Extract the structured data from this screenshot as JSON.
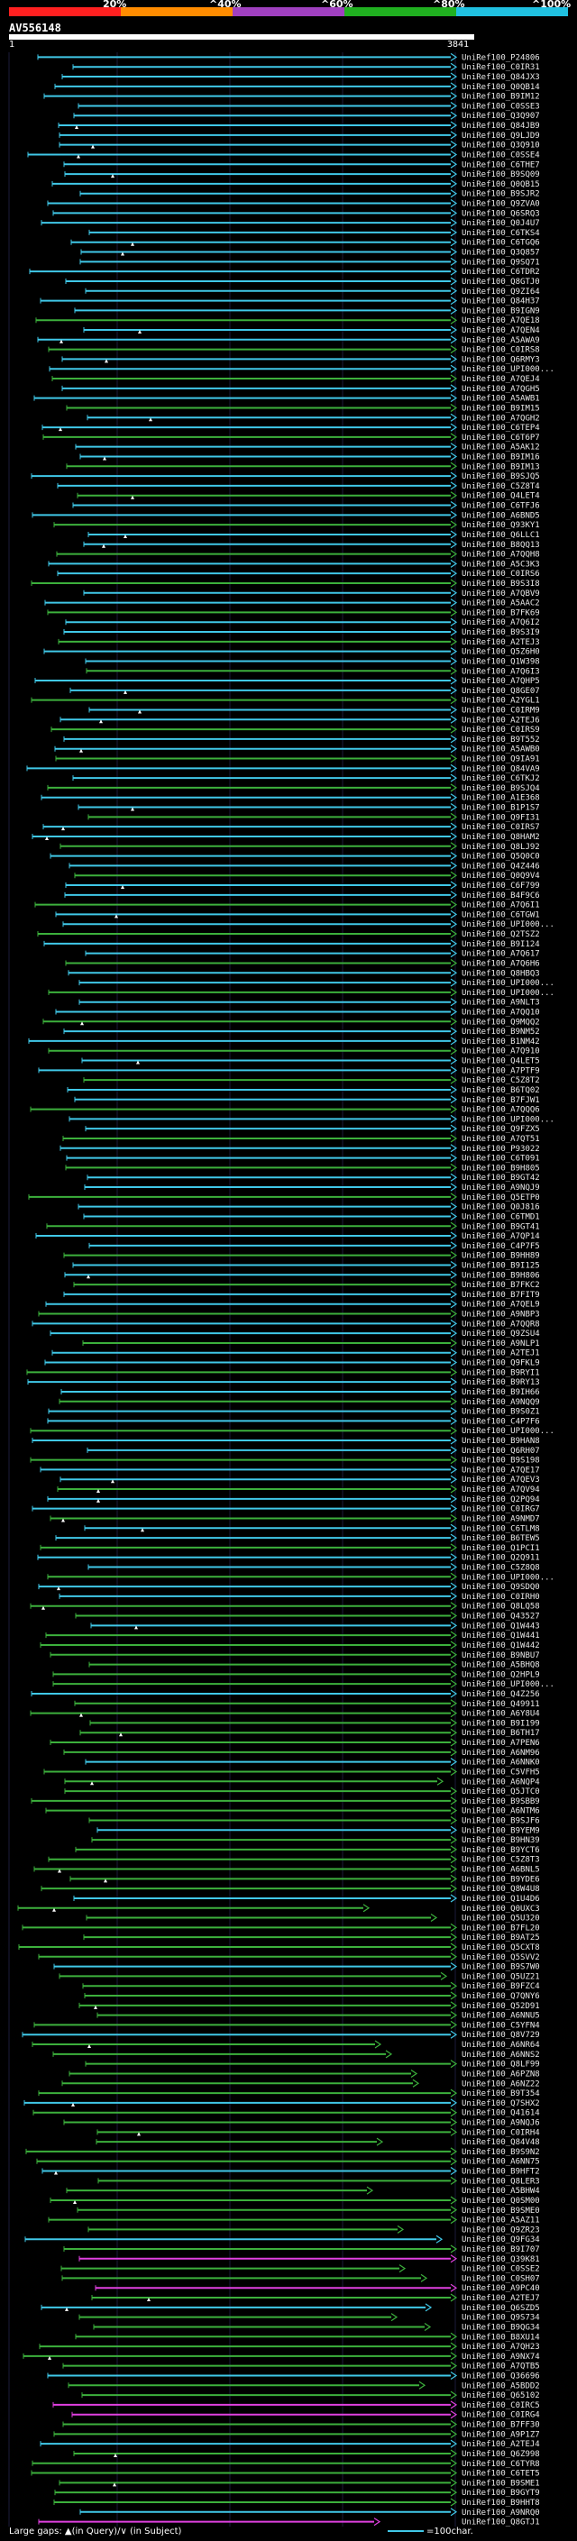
{
  "scale": {
    "labels": [
      "20%",
      "^40%",
      "^60%",
      "^80%",
      "^100%"
    ],
    "colors": [
      "#ff2020",
      "#ff8c00",
      "#a040c0",
      "#20b020",
      "#20c0e0"
    ]
  },
  "query": {
    "title": "AV556148",
    "start": "1",
    "end": "3841"
  },
  "colors": {
    "cyan": "#40c8e8",
    "green": "#3cb03c",
    "magenta": "#e040e0",
    "white": "#ffffff"
  },
  "hits": [
    "UniRef100_P24806",
    "UniRef100_C0IR31",
    "UniRef100_Q84JX3",
    "UniRef100_Q0QB14",
    "UniRef100_B9IM12",
    "UniRef100_C0SSE3",
    "UniRef100_Q3Q907",
    "UniRef100_Q84JB9",
    "UniRef100_Q9LJD9",
    "UniRef100_Q3Q910",
    "UniRef100_C0SSE4",
    "UniRef100_C6THE7",
    "UniRef100_B9SQ09",
    "UniRef100_Q0QB15",
    "UniRef100_B9SJR2",
    "UniRef100_Q9ZVA0",
    "UniRef100_Q6SRQ3",
    "UniRef100_Q0J4U7",
    "UniRef100_C6TKS4",
    "UniRef100_C6TGQ6",
    "UniRef100_Q3Q857",
    "UniRef100_Q9SQ71",
    "UniRef100_C6TDR2",
    "UniRef100_Q8GTJ0",
    "UniRef100_Q9ZI64",
    "UniRef100_Q84H37",
    "UniRef100_B9IGN9",
    "UniRef100_A7QE18",
    "UniRef100_A7QEN4",
    "UniRef100_A5AWA9",
    "UniRef100_C0IRS8",
    "UniRef100_Q6RMY3",
    "UniRef100_UPI000...",
    "UniRef100_A7QEJ4",
    "UniRef100_A7QGH5",
    "UniRef100_A5AWB1",
    "UniRef100_B9IM15",
    "UniRef100_A7QGH2",
    "UniRef100_C6TEP4",
    "UniRef100_C6T6P7",
    "UniRef100_A5AK12",
    "UniRef100_B9IM16",
    "UniRef100_B9IM13",
    "UniRef100_B9SJQ5",
    "UniRef100_C5Z8T4",
    "UniRef100_Q4LET4",
    "UniRef100_C6TFJ6",
    "UniRef100_A6BND5",
    "UniRef100_Q93KY1",
    "UniRef100_Q6LLC1",
    "UniRef100_B8QQ13",
    "UniRef100_A7QQH8",
    "UniRef100_A5C3K3",
    "UniRef100_C0IRS6",
    "UniRef100_B9S3I8",
    "UniRef100_A7QBV9",
    "UniRef100_A5AAC2",
    "UniRef100_B7FK69",
    "UniRef100_A7Q6I2",
    "UniRef100_B9S3I9",
    "UniRef100_A2TEJ3",
    "UniRef100_Q5Z6H0",
    "UniRef100_Q1W398",
    "UniRef100_A7Q6I3",
    "UniRef100_A7QHP5",
    "UniRef100_Q8GE07",
    "UniRef100_A2YGL1",
    "UniRef100_C0IRM9",
    "UniRef100_A2TEJ6",
    "UniRef100_C0IRS9",
    "UniRef100_B9T552",
    "UniRef100_A5AWB0",
    "UniRef100_Q9IA91",
    "UniRef100_Q84VA9",
    "UniRef100_C6TKJ2",
    "UniRef100_B9SJQ4",
    "UniRef100_A1E368",
    "UniRef100_B1P1S7",
    "UniRef100_Q9FI31",
    "UniRef100_C0IRS7",
    "UniRef100_Q8HAM2",
    "UniRef100_Q8LJ92",
    "UniRef100_Q5Q0C0",
    "UniRef100_Q4Z446",
    "UniRef100_Q0Q9V4",
    "UniRef100_C6F799",
    "UniRef100_B4F9C6",
    "UniRef100_A7Q6I1",
    "UniRef100_C6TGW1",
    "UniRef100_UPI000...",
    "UniRef100_Q2TSZ2",
    "UniRef100_B9I124",
    "UniRef100_A7Q617",
    "UniRef100_A7Q6H6",
    "UniRef100_Q8HBQ3",
    "UniRef100_UPI000...",
    "UniRef100_UPI000...",
    "UniRef100_A9NLT3",
    "UniRef100_A7QQ10",
    "UniRef100_Q9MQQ2",
    "UniRef100_B9NM52",
    "UniRef100_B1NM42",
    "UniRef100_A7Q910",
    "UniRef100_Q4LET5",
    "UniRef100_A7PTF9",
    "UniRef100_C5Z8T2",
    "UniRef100_B6TQ02",
    "UniRef100_B7FJW1",
    "UniRef100_A7QQQ6",
    "UniRef100_UPI000...",
    "UniRef100_Q9FZX5",
    "UniRef100_A7QT51",
    "UniRef100_P93022",
    "UniRef100_C6T091",
    "UniRef100_B9H805",
    "UniRef100_B9GT42",
    "UniRef100_A9NQJ9",
    "UniRef100_Q5ETP0",
    "UniRef100_Q0J816",
    "UniRef100_C6TMD1",
    "UniRef100_B9GT41",
    "UniRef100_A7QP14",
    "UniRef100_C4P7F5",
    "UniRef100_B9HH89",
    "UniRef100_B9I125",
    "UniRef100_B9H806",
    "UniRef100_B7FKC2",
    "UniRef100_B7FIT9",
    "UniRef100_A7QEL9",
    "UniRef100_A9NBP3",
    "UniRef100_A7QQR8",
    "UniRef100_Q9ZSU4",
    "UniRef100_A9NLP1",
    "UniRef100_A2TEJ1",
    "UniRef100_Q9FKL9",
    "UniRef100_B9RYI1",
    "UniRef100_B9RY13",
    "UniRef100_B9IH66",
    "UniRef100_A9NQQ9",
    "UniRef100_B9S0Z1",
    "UniRef100_C4P7F6",
    "UniRef100_UPI000...",
    "UniRef100_B9HAN8",
    "UniRef100_Q6RH07",
    "UniRef100_B9S198",
    "UniRef100_A7QE17",
    "UniRef100_A7QEV3",
    "UniRef100_A7QV94",
    "UniRef100_Q2PQ94",
    "UniRef100_C0IRG7",
    "UniRef100_A9NMD7",
    "UniRef100_C6TLM8",
    "UniRef100_B6TEW5",
    "UniRef100_Q1PCI1",
    "UniRef100_Q2Q911",
    "UniRef100_C5Z8Q8",
    "UniRef100_UPI000...",
    "UniRef100_Q9SDQ0",
    "UniRef100_C0IRH0",
    "UniRef100_Q8LQ58",
    "UniRef100_Q43527",
    "UniRef100_Q1W443",
    "UniRef100_Q1W441",
    "UniRef100_Q1W442",
    "UniRef100_B9NBU7",
    "UniRef100_A5BHQ8",
    "UniRef100_Q2HPL9",
    "UniRef100_UPI000...",
    "UniRef100_Q4Z256",
    "UniRef100_Q49911",
    "UniRef100_A6Y8U4",
    "UniRef100_B9I199",
    "UniRef100_B6TH17",
    "UniRef100_A7PEN6",
    "UniRef100_A6NM96",
    "UniRef100_A6NNK0",
    "UniRef100_C5VFH5",
    "UniRef100_A6NQP4",
    "UniRef100_Q5JTC0",
    "UniRef100_B9SBB9",
    "UniRef100_A6NTM6",
    "UniRef100_B9SJF6",
    "UniRef100_B9YEM9",
    "UniRef100_B9HN39",
    "UniRef100_B9YCT6",
    "UniRef100_C5Z8T3",
    "UniRef100_A6BNL5",
    "UniRef100_B9YDE6",
    "UniRef100_Q8W4U8",
    "UniRef100_Q1U4D6",
    "UniRef100_Q0UXC3",
    "UniRef100_Q5U320",
    "UniRef100_B7FL20",
    "UniRef100_B9AT25",
    "UniRef100_Q5CXT8",
    "UniRef100_Q5SVV2",
    "UniRef100_B9S7W0",
    "UniRef100_Q5UZ21",
    "UniRef100_B9FZC4",
    "UniRef100_Q7QNY6",
    "UniRef100_Q52D91",
    "UniRef100_A6NNU5",
    "UniRef100_C5YFN4",
    "UniRef100_Q8V729",
    "UniRef100_A6NR64",
    "UniRef100_A6NNS2",
    "UniRef100_Q8LF99",
    "UniRef100_A6PZN8",
    "UniRef100_A6NZ22",
    "UniRef100_B9T354",
    "UniRef100_Q7SHX2",
    "UniRef100_Q41614",
    "UniRef100_A9NQJ6",
    "UniRef100_C0IRH4",
    "UniRef100_Q84V48",
    "UniRef100_B9S9N2",
    "UniRef100_A6NN75",
    "UniRef100_B9HFT2",
    "UniRef100_Q8LER3",
    "UniRef100_A5BHW4",
    "UniRef100_Q0SM00",
    "UniRef100_B9SME0",
    "UniRef100_A5AZ11",
    "UniRef100_Q9ZR23",
    "UniRef100_Q9FG34",
    "UniRef100_B9I707",
    "UniRef100_Q39K81",
    "UniRef100_C0SSE2",
    "UniRef100_C0SH07",
    "UniRef100_A9PC40",
    "UniRef100_A2TEJ7",
    "UniRef100_Q6SZD5",
    "UniRef100_Q9S734",
    "UniRef100_B9QG34",
    "UniRef100_B8XU14",
    "UniRef100_A7QH23",
    "UniRef100_A9NX74",
    "UniRef100_A7QTB5",
    "UniRef100_Q36696",
    "UniRef100_A5BDD2",
    "UniRef100_Q65102",
    "UniRef100_C0IRC5",
    "UniRef100_C0IRG4",
    "UniRef100_B7FF30",
    "UniRef100_A9P1Z7",
    "UniRef100_A2TEJ4",
    "UniRef100_Q6Z998",
    "UniRef100_C6TYR8",
    "UniRef100_C6TET5",
    "UniRef100_B9SME1",
    "UniRef100_B9GYT9",
    "UniRef100_B9HHT8",
    "UniRef100_A9NRQ0",
    "UniRef100_Q8GTJ1"
  ],
  "footer": {
    "left_text": "Large gaps: ▲(in Query)/∨ (in Subject)",
    "right_text": "=100char."
  }
}
